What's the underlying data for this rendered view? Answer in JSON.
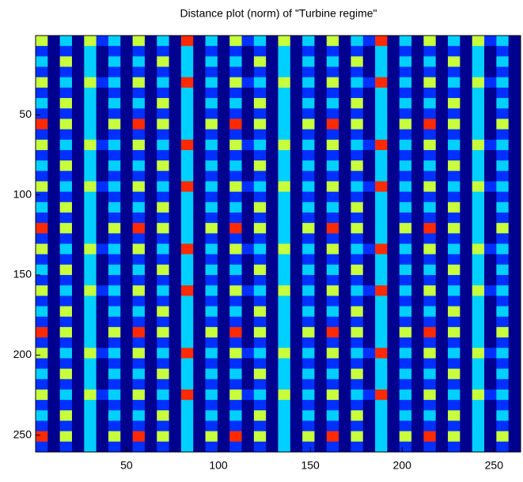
{
  "chart_data": {
    "type": "heatmap",
    "title": "Distance plot (norm) of \"Turbine regime\"",
    "xlim": [
      0.5,
      264.5
    ],
    "ylim": [
      0.5,
      260.5
    ],
    "y_reversed": true,
    "xticks": [
      50,
      100,
      150,
      200,
      250
    ],
    "yticks": [
      50,
      100,
      150,
      200,
      250
    ],
    "clim": [
      0,
      4
    ],
    "colormap": [
      "#00008f",
      "#0030ff",
      "#00d0ff",
      "#c8ff3c",
      "#ff2a00"
    ],
    "z": [
      [
        3,
        0,
        2,
        0,
        3,
        1,
        2,
        0,
        3,
        0,
        2,
        0,
        4,
        0,
        2,
        0,
        3,
        1,
        2,
        0,
        3,
        0,
        2,
        0,
        3,
        0,
        2,
        1,
        4,
        0,
        2,
        0,
        3,
        0,
        2,
        0,
        3,
        1,
        2,
        0
      ],
      [
        1,
        0,
        1,
        0,
        2,
        0,
        1,
        0,
        1,
        0,
        1,
        0,
        2,
        0,
        1,
        0,
        1,
        0,
        1,
        0,
        2,
        0,
        1,
        0,
        1,
        0,
        1,
        0,
        2,
        0,
        1,
        0,
        1,
        0,
        1,
        0,
        2,
        0,
        1,
        0
      ],
      [
        2,
        0,
        3,
        0,
        2,
        0,
        2,
        0,
        2,
        0,
        3,
        0,
        2,
        0,
        2,
        0,
        2,
        0,
        3,
        0,
        2,
        0,
        2,
        0,
        2,
        0,
        3,
        0,
        2,
        0,
        2,
        0,
        2,
        0,
        3,
        0,
        2,
        0,
        2,
        0
      ],
      [
        1,
        0,
        1,
        0,
        2,
        0,
        1,
        0,
        1,
        0,
        1,
        0,
        2,
        0,
        1,
        0,
        1,
        0,
        1,
        0,
        2,
        0,
        1,
        0,
        1,
        0,
        1,
        0,
        2,
        0,
        1,
        0,
        1,
        0,
        1,
        0,
        2,
        0,
        1,
        0
      ],
      [
        3,
        0,
        2,
        0,
        3,
        1,
        2,
        0,
        3,
        0,
        2,
        0,
        4,
        0,
        2,
        0,
        3,
        1,
        2,
        0,
        3,
        0,
        2,
        0,
        3,
        0,
        2,
        1,
        4,
        0,
        2,
        0,
        3,
        0,
        2,
        0,
        3,
        1,
        2,
        0
      ],
      [
        1,
        0,
        1,
        0,
        2,
        0,
        1,
        0,
        1,
        0,
        1,
        0,
        2,
        0,
        1,
        0,
        1,
        0,
        1,
        0,
        2,
        0,
        1,
        0,
        1,
        0,
        1,
        0,
        2,
        0,
        1,
        0,
        1,
        0,
        1,
        0,
        2,
        0,
        1,
        0
      ],
      [
        2,
        0,
        3,
        0,
        2,
        0,
        2,
        0,
        2,
        0,
        3,
        0,
        2,
        0,
        2,
        0,
        2,
        0,
        3,
        0,
        2,
        0,
        2,
        0,
        2,
        0,
        3,
        0,
        2,
        0,
        2,
        0,
        2,
        0,
        3,
        0,
        2,
        0,
        2,
        0
      ],
      [
        1,
        0,
        1,
        0,
        2,
        0,
        1,
        0,
        1,
        0,
        1,
        0,
        2,
        0,
        1,
        0,
        1,
        0,
        1,
        0,
        2,
        0,
        1,
        0,
        1,
        0,
        1,
        0,
        2,
        0,
        1,
        0,
        1,
        0,
        1,
        0,
        2,
        0,
        1,
        0
      ],
      [
        4,
        0,
        3,
        0,
        2,
        0,
        3,
        0,
        4,
        0,
        3,
        0,
        2,
        0,
        3,
        0,
        4,
        0,
        3,
        0,
        2,
        0,
        3,
        0,
        4,
        0,
        3,
        0,
        2,
        0,
        3,
        0,
        4,
        0,
        3,
        0,
        2,
        0,
        3,
        0
      ],
      [
        1,
        0,
        1,
        0,
        2,
        0,
        1,
        0,
        1,
        0,
        1,
        0,
        2,
        0,
        1,
        0,
        1,
        0,
        1,
        0,
        2,
        0,
        1,
        0,
        1,
        0,
        1,
        0,
        2,
        0,
        1,
        0,
        1,
        0,
        1,
        0,
        2,
        0,
        1,
        0
      ],
      [
        3,
        0,
        2,
        0,
        3,
        1,
        2,
        0,
        3,
        0,
        2,
        0,
        4,
        0,
        2,
        0,
        3,
        1,
        2,
        0,
        3,
        0,
        2,
        0,
        3,
        0,
        2,
        1,
        4,
        0,
        2,
        0,
        3,
        0,
        2,
        0,
        3,
        1,
        2,
        0
      ],
      [
        1,
        0,
        1,
        0,
        2,
        0,
        1,
        0,
        1,
        0,
        1,
        0,
        2,
        0,
        1,
        0,
        1,
        0,
        1,
        0,
        2,
        0,
        1,
        0,
        1,
        0,
        1,
        0,
        2,
        0,
        1,
        0,
        1,
        0,
        1,
        0,
        2,
        0,
        1,
        0
      ],
      [
        2,
        0,
        3,
        0,
        2,
        0,
        2,
        0,
        2,
        0,
        3,
        0,
        2,
        0,
        2,
        0,
        2,
        0,
        3,
        0,
        2,
        0,
        2,
        0,
        2,
        0,
        3,
        0,
        2,
        0,
        2,
        0,
        2,
        0,
        3,
        0,
        2,
        0,
        2,
        0
      ],
      [
        1,
        0,
        1,
        0,
        2,
        0,
        1,
        0,
        1,
        0,
        1,
        0,
        2,
        0,
        1,
        0,
        1,
        0,
        1,
        0,
        2,
        0,
        1,
        0,
        1,
        0,
        1,
        0,
        2,
        0,
        1,
        0,
        1,
        0,
        1,
        0,
        2,
        0,
        1,
        0
      ],
      [
        3,
        0,
        2,
        0,
        3,
        1,
        2,
        0,
        3,
        0,
        2,
        0,
        4,
        0,
        2,
        0,
        3,
        1,
        2,
        0,
        3,
        0,
        2,
        0,
        3,
        0,
        2,
        1,
        4,
        0,
        2,
        0,
        3,
        0,
        2,
        0,
        3,
        1,
        2,
        0
      ],
      [
        1,
        0,
        1,
        0,
        2,
        0,
        1,
        0,
        1,
        0,
        1,
        0,
        2,
        0,
        1,
        0,
        1,
        0,
        1,
        0,
        2,
        0,
        1,
        0,
        1,
        0,
        1,
        0,
        2,
        0,
        1,
        0,
        1,
        0,
        1,
        0,
        2,
        0,
        1,
        0
      ],
      [
        2,
        0,
        3,
        0,
        2,
        0,
        2,
        0,
        2,
        0,
        3,
        0,
        2,
        0,
        2,
        0,
        2,
        0,
        3,
        0,
        2,
        0,
        2,
        0,
        2,
        0,
        3,
        0,
        2,
        0,
        2,
        0,
        2,
        0,
        3,
        0,
        2,
        0,
        2,
        0
      ],
      [
        1,
        0,
        1,
        0,
        2,
        0,
        1,
        0,
        1,
        0,
        1,
        0,
        2,
        0,
        1,
        0,
        1,
        0,
        1,
        0,
        2,
        0,
        1,
        0,
        1,
        0,
        1,
        0,
        2,
        0,
        1,
        0,
        1,
        0,
        1,
        0,
        2,
        0,
        1,
        0
      ],
      [
        4,
        0,
        3,
        0,
        2,
        0,
        3,
        0,
        4,
        0,
        3,
        0,
        2,
        0,
        3,
        0,
        4,
        0,
        3,
        0,
        2,
        0,
        3,
        0,
        4,
        0,
        3,
        0,
        2,
        0,
        3,
        0,
        4,
        0,
        3,
        0,
        2,
        0,
        3,
        0
      ],
      [
        1,
        0,
        1,
        0,
        2,
        0,
        1,
        0,
        1,
        0,
        1,
        0,
        2,
        0,
        1,
        0,
        1,
        0,
        1,
        0,
        2,
        0,
        1,
        0,
        1,
        0,
        1,
        0,
        2,
        0,
        1,
        0,
        1,
        0,
        1,
        0,
        2,
        0,
        1,
        0
      ],
      [
        3,
        0,
        2,
        0,
        3,
        1,
        2,
        0,
        3,
        0,
        2,
        0,
        4,
        0,
        2,
        0,
        3,
        1,
        2,
        0,
        3,
        0,
        2,
        0,
        3,
        0,
        2,
        1,
        4,
        0,
        2,
        0,
        3,
        0,
        2,
        0,
        3,
        1,
        2,
        0
      ],
      [
        1,
        0,
        1,
        0,
        2,
        0,
        1,
        0,
        1,
        0,
        1,
        0,
        2,
        0,
        1,
        0,
        1,
        0,
        1,
        0,
        2,
        0,
        1,
        0,
        1,
        0,
        1,
        0,
        2,
        0,
        1,
        0,
        1,
        0,
        1,
        0,
        2,
        0,
        1,
        0
      ],
      [
        2,
        0,
        3,
        0,
        2,
        0,
        2,
        0,
        2,
        0,
        3,
        0,
        2,
        0,
        2,
        0,
        2,
        0,
        3,
        0,
        2,
        0,
        2,
        0,
        2,
        0,
        3,
        0,
        2,
        0,
        2,
        0,
        2,
        0,
        3,
        0,
        2,
        0,
        2,
        0
      ],
      [
        1,
        0,
        1,
        0,
        2,
        0,
        1,
        0,
        1,
        0,
        1,
        0,
        2,
        0,
        1,
        0,
        1,
        0,
        1,
        0,
        2,
        0,
        1,
        0,
        1,
        0,
        1,
        0,
        2,
        0,
        1,
        0,
        1,
        0,
        1,
        0,
        2,
        0,
        1,
        0
      ],
      [
        3,
        0,
        2,
        0,
        3,
        1,
        2,
        0,
        3,
        0,
        2,
        0,
        4,
        0,
        2,
        0,
        3,
        1,
        2,
        0,
        3,
        0,
        2,
        0,
        3,
        0,
        2,
        1,
        4,
        0,
        2,
        0,
        3,
        0,
        2,
        0,
        3,
        1,
        2,
        0
      ],
      [
        1,
        0,
        1,
        0,
        2,
        0,
        1,
        0,
        1,
        0,
        1,
        0,
        2,
        0,
        1,
        0,
        1,
        0,
        1,
        0,
        2,
        0,
        1,
        0,
        1,
        0,
        1,
        0,
        2,
        0,
        1,
        0,
        1,
        0,
        1,
        0,
        2,
        0,
        1,
        0
      ],
      [
        2,
        0,
        3,
        0,
        2,
        0,
        2,
        0,
        2,
        0,
        3,
        0,
        2,
        0,
        2,
        0,
        2,
        0,
        3,
        0,
        2,
        0,
        2,
        0,
        2,
        0,
        3,
        0,
        2,
        0,
        2,
        0,
        2,
        0,
        3,
        0,
        2,
        0,
        2,
        0
      ],
      [
        1,
        0,
        1,
        0,
        2,
        0,
        1,
        0,
        1,
        0,
        1,
        0,
        2,
        0,
        1,
        0,
        1,
        0,
        1,
        0,
        2,
        0,
        1,
        0,
        1,
        0,
        1,
        0,
        2,
        0,
        1,
        0,
        1,
        0,
        1,
        0,
        2,
        0,
        1,
        0
      ],
      [
        4,
        0,
        3,
        0,
        2,
        0,
        3,
        0,
        4,
        0,
        3,
        0,
        2,
        0,
        3,
        0,
        4,
        0,
        3,
        0,
        2,
        0,
        3,
        0,
        4,
        0,
        3,
        0,
        2,
        0,
        3,
        0,
        4,
        0,
        3,
        0,
        2,
        0,
        3,
        0
      ],
      [
        1,
        0,
        1,
        0,
        2,
        0,
        1,
        0,
        1,
        0,
        1,
        0,
        2,
        0,
        1,
        0,
        1,
        0,
        1,
        0,
        2,
        0,
        1,
        0,
        1,
        0,
        1,
        0,
        2,
        0,
        1,
        0,
        1,
        0,
        1,
        0,
        2,
        0,
        1,
        0
      ],
      [
        3,
        0,
        2,
        0,
        3,
        1,
        2,
        0,
        3,
        0,
        2,
        0,
        4,
        0,
        2,
        0,
        3,
        1,
        2,
        0,
        3,
        0,
        2,
        0,
        3,
        0,
        2,
        1,
        4,
        0,
        2,
        0,
        3,
        0,
        2,
        0,
        3,
        1,
        2,
        0
      ],
      [
        1,
        0,
        1,
        0,
        2,
        0,
        1,
        0,
        1,
        0,
        1,
        0,
        2,
        0,
        1,
        0,
        1,
        0,
        1,
        0,
        2,
        0,
        1,
        0,
        1,
        0,
        1,
        0,
        2,
        0,
        1,
        0,
        1,
        0,
        1,
        0,
        2,
        0,
        1,
        0
      ],
      [
        2,
        0,
        3,
        0,
        2,
        0,
        2,
        0,
        2,
        0,
        3,
        0,
        2,
        0,
        2,
        0,
        2,
        0,
        3,
        0,
        2,
        0,
        2,
        0,
        2,
        0,
        3,
        0,
        2,
        0,
        2,
        0,
        2,
        0,
        3,
        0,
        2,
        0,
        2,
        0
      ],
      [
        1,
        0,
        1,
        0,
        2,
        0,
        1,
        0,
        1,
        0,
        1,
        0,
        2,
        0,
        1,
        0,
        1,
        0,
        1,
        0,
        2,
        0,
        1,
        0,
        1,
        0,
        1,
        0,
        2,
        0,
        1,
        0,
        1,
        0,
        1,
        0,
        2,
        0,
        1,
        0
      ],
      [
        3,
        0,
        2,
        0,
        3,
        1,
        2,
        0,
        3,
        0,
        2,
        0,
        4,
        0,
        2,
        0,
        3,
        1,
        2,
        0,
        3,
        0,
        2,
        0,
        3,
        0,
        2,
        1,
        4,
        0,
        2,
        0,
        3,
        0,
        2,
        0,
        3,
        1,
        2,
        0
      ],
      [
        1,
        0,
        1,
        0,
        2,
        0,
        1,
        0,
        1,
        0,
        1,
        0,
        2,
        0,
        1,
        0,
        1,
        0,
        1,
        0,
        2,
        0,
        1,
        0,
        1,
        0,
        1,
        0,
        2,
        0,
        1,
        0,
        1,
        0,
        1,
        0,
        2,
        0,
        1,
        0
      ],
      [
        2,
        0,
        3,
        0,
        2,
        0,
        2,
        0,
        2,
        0,
        3,
        0,
        2,
        0,
        2,
        0,
        2,
        0,
        3,
        0,
        2,
        0,
        2,
        0,
        2,
        0,
        3,
        0,
        2,
        0,
        2,
        0,
        2,
        0,
        3,
        0,
        2,
        0,
        2,
        0
      ],
      [
        1,
        0,
        1,
        0,
        2,
        0,
        1,
        0,
        1,
        0,
        1,
        0,
        2,
        0,
        1,
        0,
        1,
        0,
        1,
        0,
        2,
        0,
        1,
        0,
        1,
        0,
        1,
        0,
        2,
        0,
        1,
        0,
        1,
        0,
        1,
        0,
        2,
        0,
        1,
        0
      ],
      [
        4,
        0,
        3,
        0,
        2,
        0,
        3,
        0,
        4,
        0,
        3,
        0,
        2,
        0,
        3,
        0,
        4,
        0,
        3,
        0,
        2,
        0,
        3,
        0,
        4,
        0,
        3,
        0,
        2,
        0,
        3,
        0,
        4,
        0,
        3,
        0,
        2,
        0,
        3,
        0
      ],
      [
        1,
        0,
        1,
        0,
        2,
        0,
        1,
        0,
        1,
        0,
        1,
        0,
        2,
        0,
        1,
        0,
        1,
        0,
        1,
        0,
        2,
        0,
        1,
        0,
        1,
        0,
        1,
        0,
        2,
        0,
        1,
        0,
        1,
        0,
        1,
        0,
        2,
        0,
        1,
        0
      ]
    ]
  }
}
